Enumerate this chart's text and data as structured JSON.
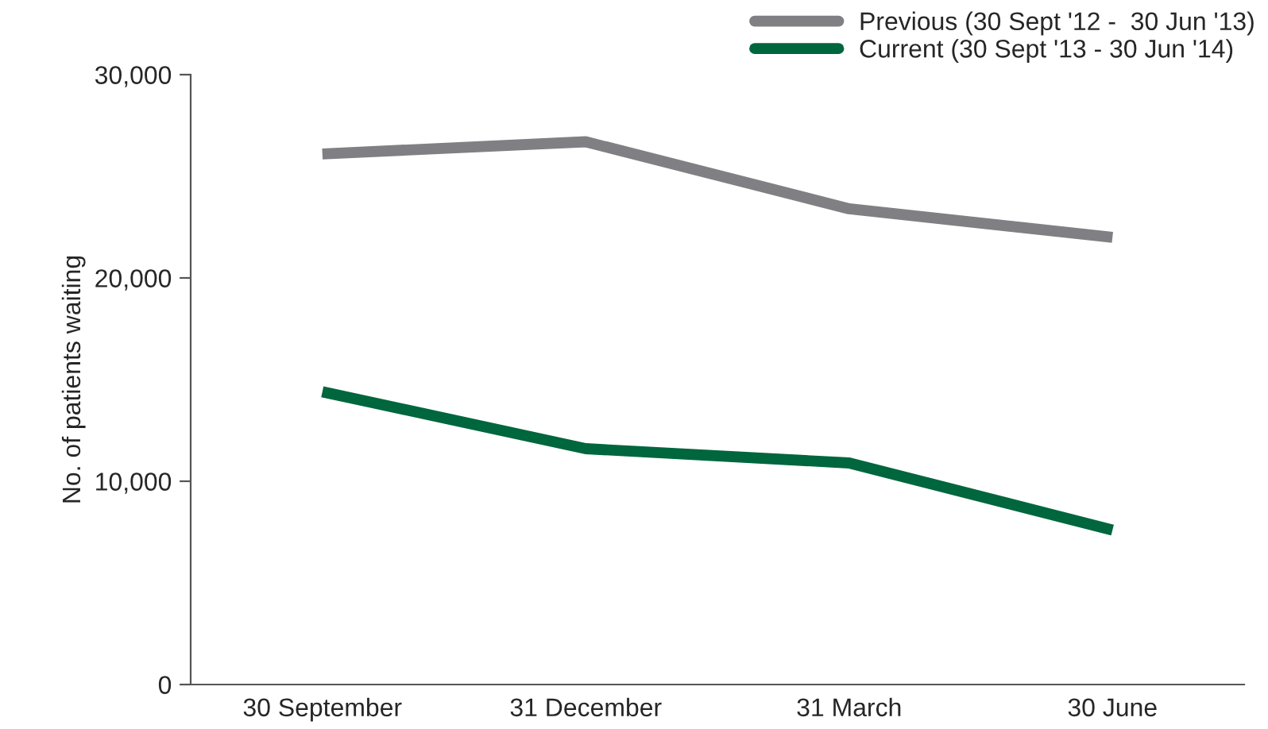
{
  "chart_data": {
    "type": "line",
    "ylabel": "No. of patients waiting",
    "categories": [
      "30 September",
      "31 December",
      "31 March",
      "30 June"
    ],
    "series": [
      {
        "name": "Previous (30 Sept '12 -  30 Jun '13)",
        "color": "#808084",
        "values": [
          26100,
          26700,
          23400,
          22000
        ]
      },
      {
        "name": "Current (30 Sept '13 - 30 Jun '14)",
        "color": "#00663d",
        "values": [
          14400,
          11600,
          10900,
          7600
        ]
      }
    ],
    "ylim": [
      0,
      30000
    ],
    "yticks": [
      {
        "value": 0,
        "label": "0"
      },
      {
        "value": 10000,
        "label": "10,000"
      },
      {
        "value": 20000,
        "label": "20,000"
      },
      {
        "value": 30000,
        "label": "30,000"
      }
    ],
    "grid": false,
    "legend": "top right",
    "marker": "none",
    "line_style": "solid"
  }
}
